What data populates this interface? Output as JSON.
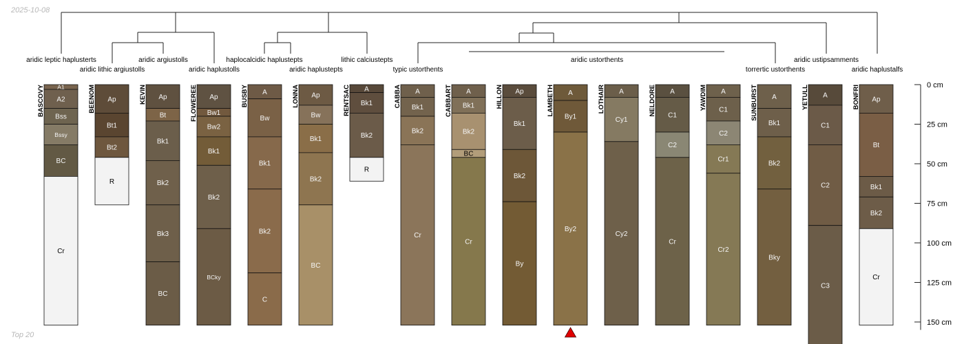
{
  "meta": {
    "date": "2025-10-08",
    "subset": "Top 20"
  },
  "depth_axis": {
    "unit": "cm",
    "max": 155,
    "ticks": [
      0,
      25,
      50,
      75,
      100,
      125,
      150
    ]
  },
  "taxa": [
    "aridic leptic haplusterts",
    "aridic lithic argiustolls",
    "aridic argiustolls",
    "haplocalcidic haplustepts",
    "aridic haplustolls",
    "aridic haplustepts",
    "lithic calciustepts",
    "typic ustorthents",
    "aridic ustorthents",
    "torrertic ustorthents",
    "aridic ustipsamments",
    "aridic haplustalfs"
  ],
  "profiles": [
    {
      "name": "BASCOVY",
      "horizons": [
        {
          "name": "A1",
          "top": 0,
          "bottom": 3,
          "color": "#78644e"
        },
        {
          "name": "A2",
          "top": 3,
          "bottom": 15,
          "color": "#6f604e"
        },
        {
          "name": "Bss",
          "top": 15,
          "bottom": 25,
          "color": "#6e6450"
        },
        {
          "name": "Bssy",
          "top": 25,
          "bottom": 38,
          "color": "#857b66"
        },
        {
          "name": "BC",
          "top": 38,
          "bottom": 58,
          "color": "#625944"
        },
        {
          "name": "Cr",
          "top": 58,
          "bottom": 152,
          "color": "#f3f3f3"
        }
      ]
    },
    {
      "name": "BEENOM",
      "horizons": [
        {
          "name": "Ap",
          "top": 0,
          "bottom": 18,
          "color": "#5e4c39"
        },
        {
          "name": "Bt1",
          "top": 18,
          "bottom": 33,
          "color": "#5a4530"
        },
        {
          "name": "Bt2",
          "top": 33,
          "bottom": 46,
          "color": "#6e573e"
        },
        {
          "name": "R",
          "top": 46,
          "bottom": 76,
          "color": "#f3f3f3"
        }
      ]
    },
    {
      "name": "KEVIN",
      "horizons": [
        {
          "name": "Ap",
          "top": 0,
          "bottom": 15,
          "color": "#5f5140"
        },
        {
          "name": "Bt",
          "top": 15,
          "bottom": 23,
          "color": "#7d6447"
        },
        {
          "name": "Bk1",
          "top": 23,
          "bottom": 48,
          "color": "#6b5e4b"
        },
        {
          "name": "Bk2",
          "top": 48,
          "bottom": 76,
          "color": "#6f604b"
        },
        {
          "name": "Bk3",
          "top": 76,
          "bottom": 112,
          "color": "#6e5f4a"
        },
        {
          "name": "BC",
          "top": 112,
          "bottom": 152,
          "color": "#6b5c47"
        }
      ]
    },
    {
      "name": "FLOWEREE",
      "horizons": [
        {
          "name": "Ap",
          "top": 0,
          "bottom": 15,
          "color": "#5f5242"
        },
        {
          "name": "Bw1",
          "top": 15,
          "bottom": 20,
          "color": "#72593e"
        },
        {
          "name": "Bw2",
          "top": 20,
          "bottom": 33,
          "color": "#7a6242"
        },
        {
          "name": "Bk1",
          "top": 33,
          "bottom": 51,
          "color": "#735c38"
        },
        {
          "name": "Bk2",
          "top": 51,
          "bottom": 91,
          "color": "#6e5f4a"
        },
        {
          "name": "BCky",
          "top": 91,
          "bottom": 152,
          "color": "#6c5b45"
        }
      ]
    },
    {
      "name": "BUSBY",
      "horizons": [
        {
          "name": "A",
          "top": 0,
          "bottom": 9,
          "color": "#6e5a46"
        },
        {
          "name": "Bw",
          "top": 9,
          "bottom": 33,
          "color": "#7a6146"
        },
        {
          "name": "Bk1",
          "top": 33,
          "bottom": 66,
          "color": "#86694b"
        },
        {
          "name": "Bk2",
          "top": 66,
          "bottom": 119,
          "color": "#8a6b4b"
        },
        {
          "name": "C",
          "top": 119,
          "bottom": 152,
          "color": "#8a6b4a"
        }
      ]
    },
    {
      "name": "LONNA",
      "horizons": [
        {
          "name": "Ap",
          "top": 0,
          "bottom": 13,
          "color": "#6d5a44"
        },
        {
          "name": "Bw",
          "top": 13,
          "bottom": 25,
          "color": "#86725a"
        },
        {
          "name": "Bk1",
          "top": 25,
          "bottom": 43,
          "color": "#8a6e48"
        },
        {
          "name": "Bk2",
          "top": 43,
          "bottom": 76,
          "color": "#8e7550"
        },
        {
          "name": "BC",
          "top": 76,
          "bottom": 152,
          "color": "#a89068"
        }
      ]
    },
    {
      "name": "RENTSAC",
      "horizons": [
        {
          "name": "A",
          "top": 0,
          "bottom": 5,
          "color": "#574839"
        },
        {
          "name": "Bk1",
          "top": 5,
          "bottom": 18,
          "color": "#5f4e3e"
        },
        {
          "name": "Bk2",
          "top": 18,
          "bottom": 46,
          "color": "#6b5b49"
        },
        {
          "name": "R",
          "top": 46,
          "bottom": 61,
          "color": "#f3f3f3"
        }
      ]
    },
    {
      "name": "CABBA",
      "horizons": [
        {
          "name": "A",
          "top": 0,
          "bottom": 8,
          "color": "#6f604c"
        },
        {
          "name": "Bk1",
          "top": 8,
          "bottom": 20,
          "color": "#73634d"
        },
        {
          "name": "Bk2",
          "top": 20,
          "bottom": 38,
          "color": "#8a7457"
        },
        {
          "name": "Cr",
          "top": 38,
          "bottom": 152,
          "color": "#8b755a"
        }
      ]
    },
    {
      "name": "CABBART",
      "horizons": [
        {
          "name": "A",
          "top": 0,
          "bottom": 8,
          "color": "#6f604c"
        },
        {
          "name": "Bk1",
          "top": 8,
          "bottom": 18,
          "color": "#807058"
        },
        {
          "name": "Bk2",
          "top": 18,
          "bottom": 41,
          "color": "#a89170"
        },
        {
          "name": "BC",
          "top": 41,
          "bottom": 46,
          "color": "#b29d7a"
        },
        {
          "name": "Cr",
          "top": 46,
          "bottom": 152,
          "color": "#85784c"
        }
      ]
    },
    {
      "name": "HILLON",
      "horizons": [
        {
          "name": "Ap",
          "top": 0,
          "bottom": 8,
          "color": "#5a4c3c"
        },
        {
          "name": "Bk1",
          "top": 8,
          "bottom": 41,
          "color": "#6c5d4a"
        },
        {
          "name": "Bk2",
          "top": 41,
          "bottom": 74,
          "color": "#6d5738"
        },
        {
          "name": "By",
          "top": 74,
          "bottom": 152,
          "color": "#735b34"
        }
      ]
    },
    {
      "name": "LAMBETH",
      "horizons": [
        {
          "name": "A",
          "top": 0,
          "bottom": 10,
          "color": "#6e5a3a"
        },
        {
          "name": "By1",
          "top": 10,
          "bottom": 30,
          "color": "#6f5939"
        },
        {
          "name": "By2",
          "top": 30,
          "bottom": 152,
          "color": "#8a7248"
        }
      ]
    },
    {
      "name": "LOTHAIR",
      "horizons": [
        {
          "name": "A",
          "top": 0,
          "bottom": 8,
          "color": "#6b5e4a"
        },
        {
          "name": "Cy1",
          "top": 8,
          "bottom": 36,
          "color": "#857a62"
        },
        {
          "name": "Cy2",
          "top": 36,
          "bottom": 152,
          "color": "#6e604a"
        }
      ]
    },
    {
      "name": "NELDORE",
      "horizons": [
        {
          "name": "A",
          "top": 0,
          "bottom": 8,
          "color": "#5a5040"
        },
        {
          "name": "C1",
          "top": 8,
          "bottom": 30,
          "color": "#655b47"
        },
        {
          "name": "C2",
          "top": 30,
          "bottom": 46,
          "color": "#8a8774"
        },
        {
          "name": "Cr",
          "top": 46,
          "bottom": 152,
          "color": "#6d6249"
        }
      ]
    },
    {
      "name": "YAWDIM",
      "horizons": [
        {
          "name": "A",
          "top": 0,
          "bottom": 8,
          "color": "#6e614c"
        },
        {
          "name": "C1",
          "top": 8,
          "bottom": 23,
          "color": "#6d604b"
        },
        {
          "name": "C2",
          "top": 23,
          "bottom": 38,
          "color": "#8c8674"
        },
        {
          "name": "Cr1",
          "top": 38,
          "bottom": 56,
          "color": "#857955"
        },
        {
          "name": "Cr2",
          "top": 56,
          "bottom": 152,
          "color": "#857955"
        }
      ]
    },
    {
      "name": "SUNBURST",
      "horizons": [
        {
          "name": "A",
          "top": 0,
          "bottom": 15,
          "color": "#6e604b"
        },
        {
          "name": "Bk1",
          "top": 15,
          "bottom": 33,
          "color": "#6e5f4a"
        },
        {
          "name": "Bk2",
          "top": 33,
          "bottom": 66,
          "color": "#72603f"
        },
        {
          "name": "Bky",
          "top": 66,
          "bottom": 152,
          "color": "#735f40"
        }
      ]
    },
    {
      "name": "YETULL",
      "horizons": [
        {
          "name": "A",
          "top": 0,
          "bottom": 13,
          "color": "#574a3a"
        },
        {
          "name": "C1",
          "top": 13,
          "bottom": 38,
          "color": "#6b5a48"
        },
        {
          "name": "C2",
          "top": 38,
          "bottom": 89,
          "color": "#705c45"
        },
        {
          "name": "C3",
          "top": 89,
          "bottom": 165,
          "color": "#6b5c48"
        }
      ]
    },
    {
      "name": "BONFRI",
      "horizons": [
        {
          "name": "Ap",
          "top": 0,
          "bottom": 18,
          "color": "#6f5e4a"
        },
        {
          "name": "Bt",
          "top": 18,
          "bottom": 58,
          "color": "#7a5e45"
        },
        {
          "name": "Bk1",
          "top": 58,
          "bottom": 71,
          "color": "#6c5b47"
        },
        {
          "name": "Bk2",
          "top": 71,
          "bottom": 91,
          "color": "#6d5c48"
        },
        {
          "name": "Cr",
          "top": 91,
          "bottom": 152,
          "color": "#f3f3f3"
        }
      ]
    }
  ],
  "marker": {
    "profile": "LAMBETH",
    "color": "#e00000"
  }
}
